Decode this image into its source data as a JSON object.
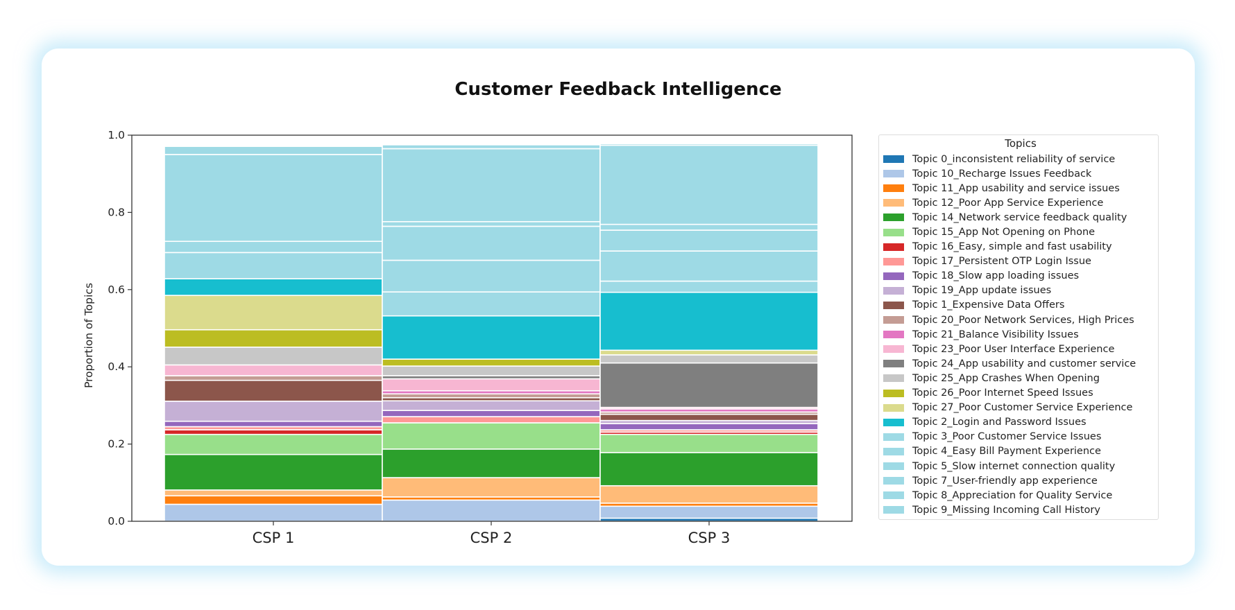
{
  "chart_data": {
    "type": "bar",
    "stacked": true,
    "title": "Customer Feedback Intelligence",
    "ylabel": "Proportion of Topics",
    "xlabel": "",
    "ylim": [
      0,
      1
    ],
    "yticks": [
      "0.0",
      "0.2",
      "0.4",
      "0.6",
      "0.8",
      "1.0"
    ],
    "categories": [
      "CSP 1",
      "CSP 2",
      "CSP 3"
    ],
    "legend_title": "Topics",
    "legend_position": "right",
    "series": [
      {
        "name": "Topic 0_inconsistent reliability of service",
        "color": "#1f77b4",
        "values": [
          0.0,
          0.0,
          0.008
        ]
      },
      {
        "name": "Topic 10_Recharge Issues Feedback",
        "color": "#aec7e8",
        "values": [
          0.044,
          0.055,
          0.031
        ]
      },
      {
        "name": "Topic 11_App usability and service issues",
        "color": "#ff7f0e",
        "values": [
          0.022,
          0.008,
          0.008
        ]
      },
      {
        "name": "Topic 12_Poor App Service Experience",
        "color": "#ffbb78",
        "values": [
          0.015,
          0.05,
          0.045
        ]
      },
      {
        "name": "Topic 14_Network service feedback quality",
        "color": "#2ca02c",
        "values": [
          0.092,
          0.074,
          0.086
        ]
      },
      {
        "name": "Topic 15_App Not Opening on Phone",
        "color": "#98df8a",
        "values": [
          0.052,
          0.068,
          0.047
        ]
      },
      {
        "name": "Topic 16_Easy, simple and fast usability",
        "color": "#d62728",
        "values": [
          0.012,
          0.0,
          0.006
        ]
      },
      {
        "name": "Topic 17_Persistent OTP Login Issue",
        "color": "#ff9896",
        "values": [
          0.008,
          0.016,
          0.006
        ]
      },
      {
        "name": "Topic 18_Slow app loading issues",
        "color": "#9467bd",
        "values": [
          0.014,
          0.016,
          0.016
        ]
      },
      {
        "name": "Topic 19_App update issues",
        "color": "#c5b0d5",
        "values": [
          0.052,
          0.025,
          0.008
        ]
      },
      {
        "name": "Topic 1_Expensive Data Offers",
        "color": "#8c564b",
        "values": [
          0.054,
          0.008,
          0.016
        ]
      },
      {
        "name": "Topic 20_Poor Network Services, High Prices",
        "color": "#c49c94",
        "values": [
          0.012,
          0.01,
          0.006
        ]
      },
      {
        "name": "Topic 21_Balance Visibility Issues",
        "color": "#e377c2",
        "values": [
          0.0,
          0.008,
          0.008
        ]
      },
      {
        "name": "Topic 23_Poor User Interface Experience",
        "color": "#f7b6d2",
        "values": [
          0.028,
          0.031,
          0.004
        ]
      },
      {
        "name": "Topic 24_App usability and customer service",
        "color": "#7f7f7f",
        "values": [
          0.0,
          0.008,
          0.115
        ]
      },
      {
        "name": "Topic 25_App Crashes When Opening",
        "color": "#c7c7c7",
        "values": [
          0.046,
          0.025,
          0.021
        ]
      },
      {
        "name": "Topic 26_Poor Internet Speed Issues",
        "color": "#bcbd22",
        "values": [
          0.045,
          0.018,
          0.0
        ]
      },
      {
        "name": "Topic 27_Poor Customer Service Experience",
        "color": "#dbdb8d",
        "values": [
          0.089,
          0.0,
          0.012
        ]
      },
      {
        "name": "Topic 2_Login and Password Issues",
        "color": "#17becf",
        "values": [
          0.043,
          0.112,
          0.15
        ]
      },
      {
        "name": "Topic 3_Poor Customer Service Issues",
        "color": "#9edae5",
        "values": [
          0.0,
          0.062,
          0.029
        ]
      },
      {
        "name": "Topic 4_Easy Bill Payment Experience",
        "color": "#9edae5",
        "values": [
          0.068,
          0.082,
          0.078
        ]
      },
      {
        "name": "Topic 5_Slow internet connection quality",
        "color": "#9edae5",
        "values": [
          0.029,
          0.088,
          0.054
        ]
      },
      {
        "name": "Topic 7_User-friendly app experience",
        "color": "#9edae5",
        "values": [
          0.225,
          0.012,
          0.015
        ]
      },
      {
        "name": "Topic 8_Appreciation for Quality Service",
        "color": "#9edae5",
        "values": [
          0.021,
          0.189,
          0.205
        ]
      },
      {
        "name": "Topic 9_Missing Incoming Call History",
        "color": "#9edae5",
        "values": [
          0.0,
          0.01,
          0.004
        ]
      }
    ]
  }
}
